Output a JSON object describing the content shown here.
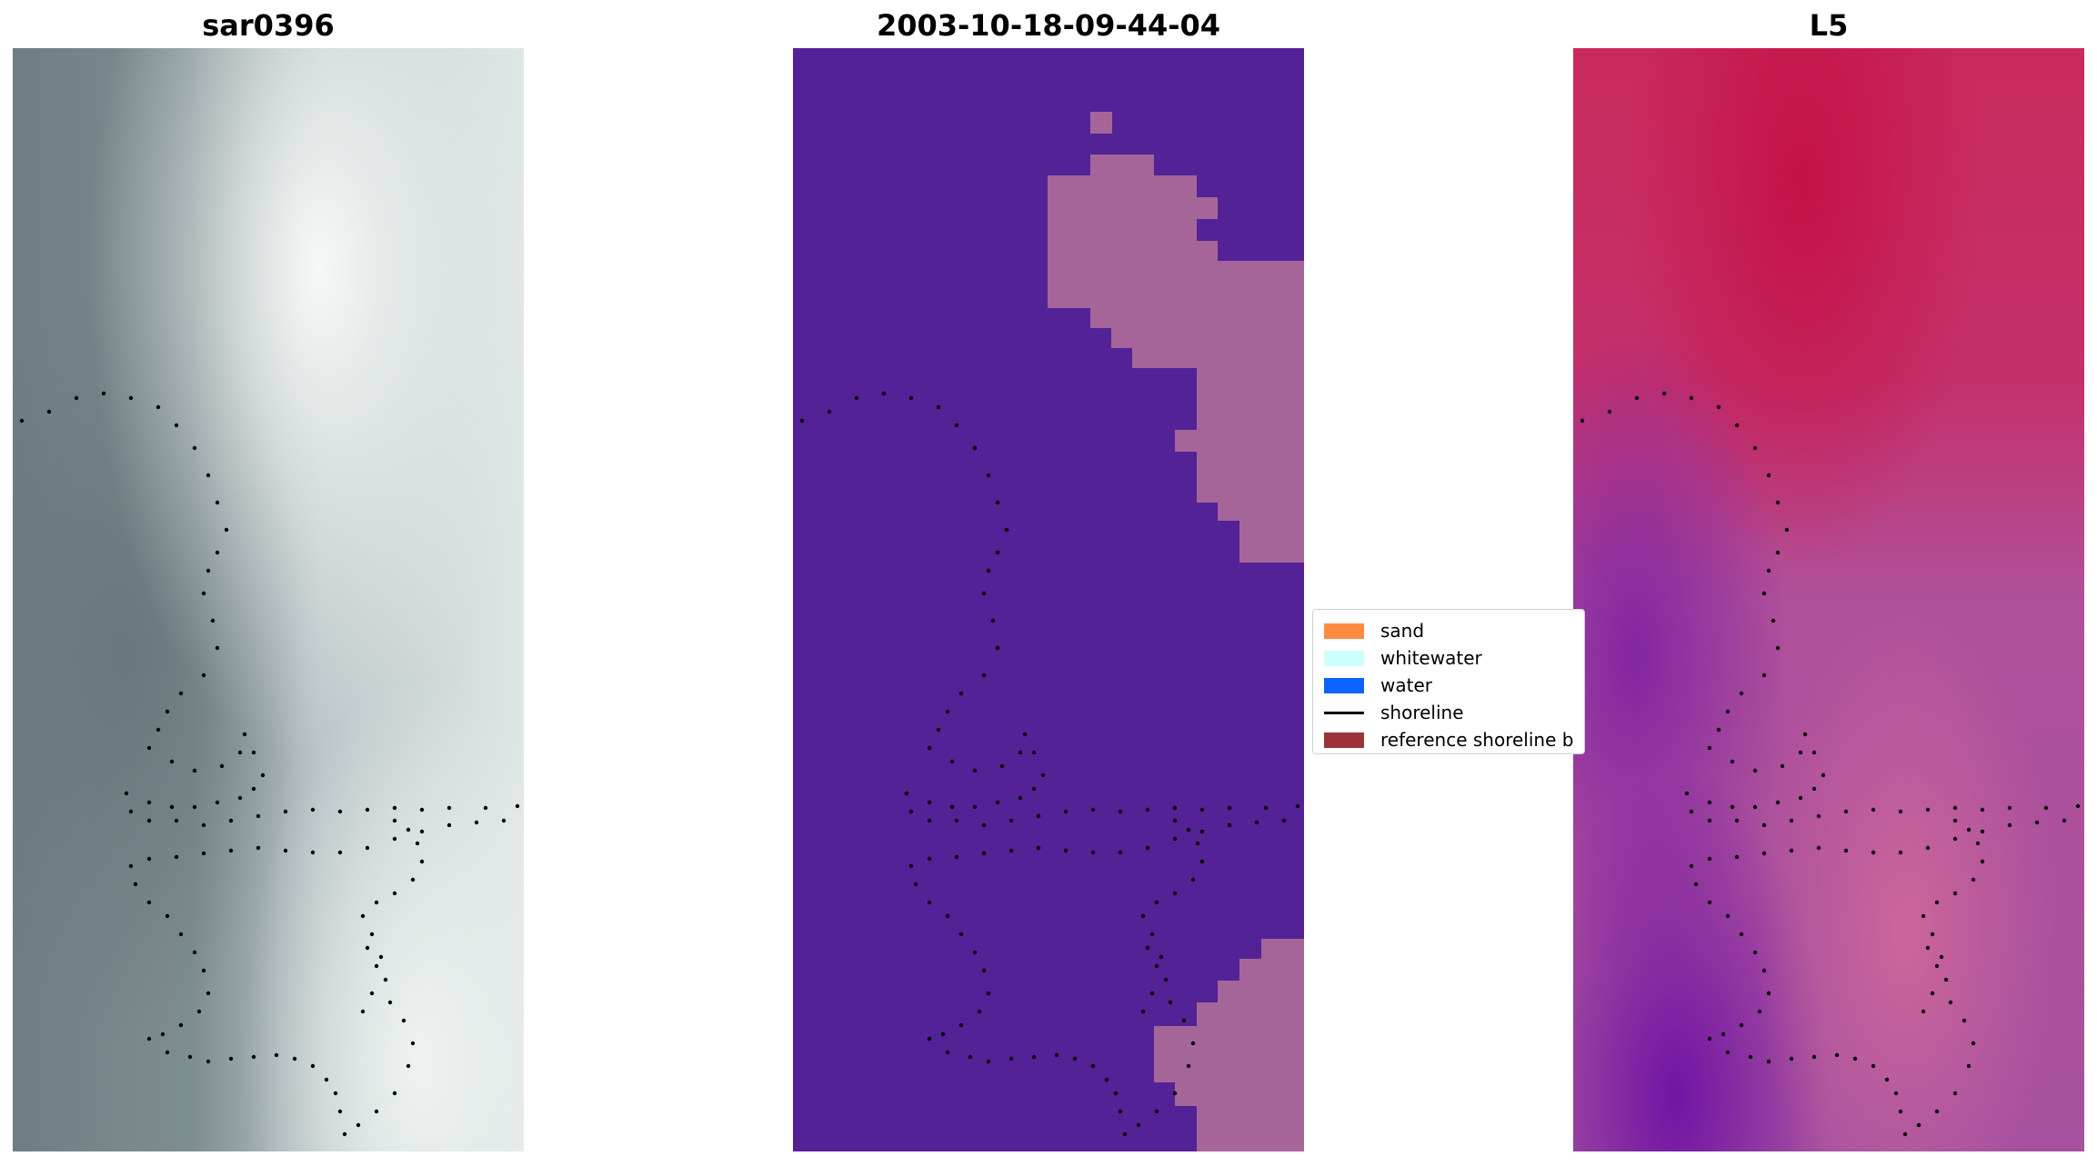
{
  "panels": {
    "left": {
      "title": "sar0396"
    },
    "middle": {
      "title": "2003-10-18-09-44-04"
    },
    "right": {
      "title": "L5"
    }
  },
  "legend": {
    "items": [
      {
        "label": "sand",
        "color": "#ff8c40",
        "kind": "patch"
      },
      {
        "label": "whitewater",
        "color": "#ccffff",
        "kind": "patch"
      },
      {
        "label": "water",
        "color": "#0a64ff",
        "kind": "patch"
      },
      {
        "label": "shoreline",
        "color": "#000000",
        "kind": "line"
      },
      {
        "label": "reference shoreline b",
        "color": "#9b3338",
        "kind": "patch"
      }
    ]
  },
  "colors": {
    "classification_background": "#532296",
    "classification_sand_overlay": "#a56599",
    "shoreline_dots": "#000000"
  }
}
